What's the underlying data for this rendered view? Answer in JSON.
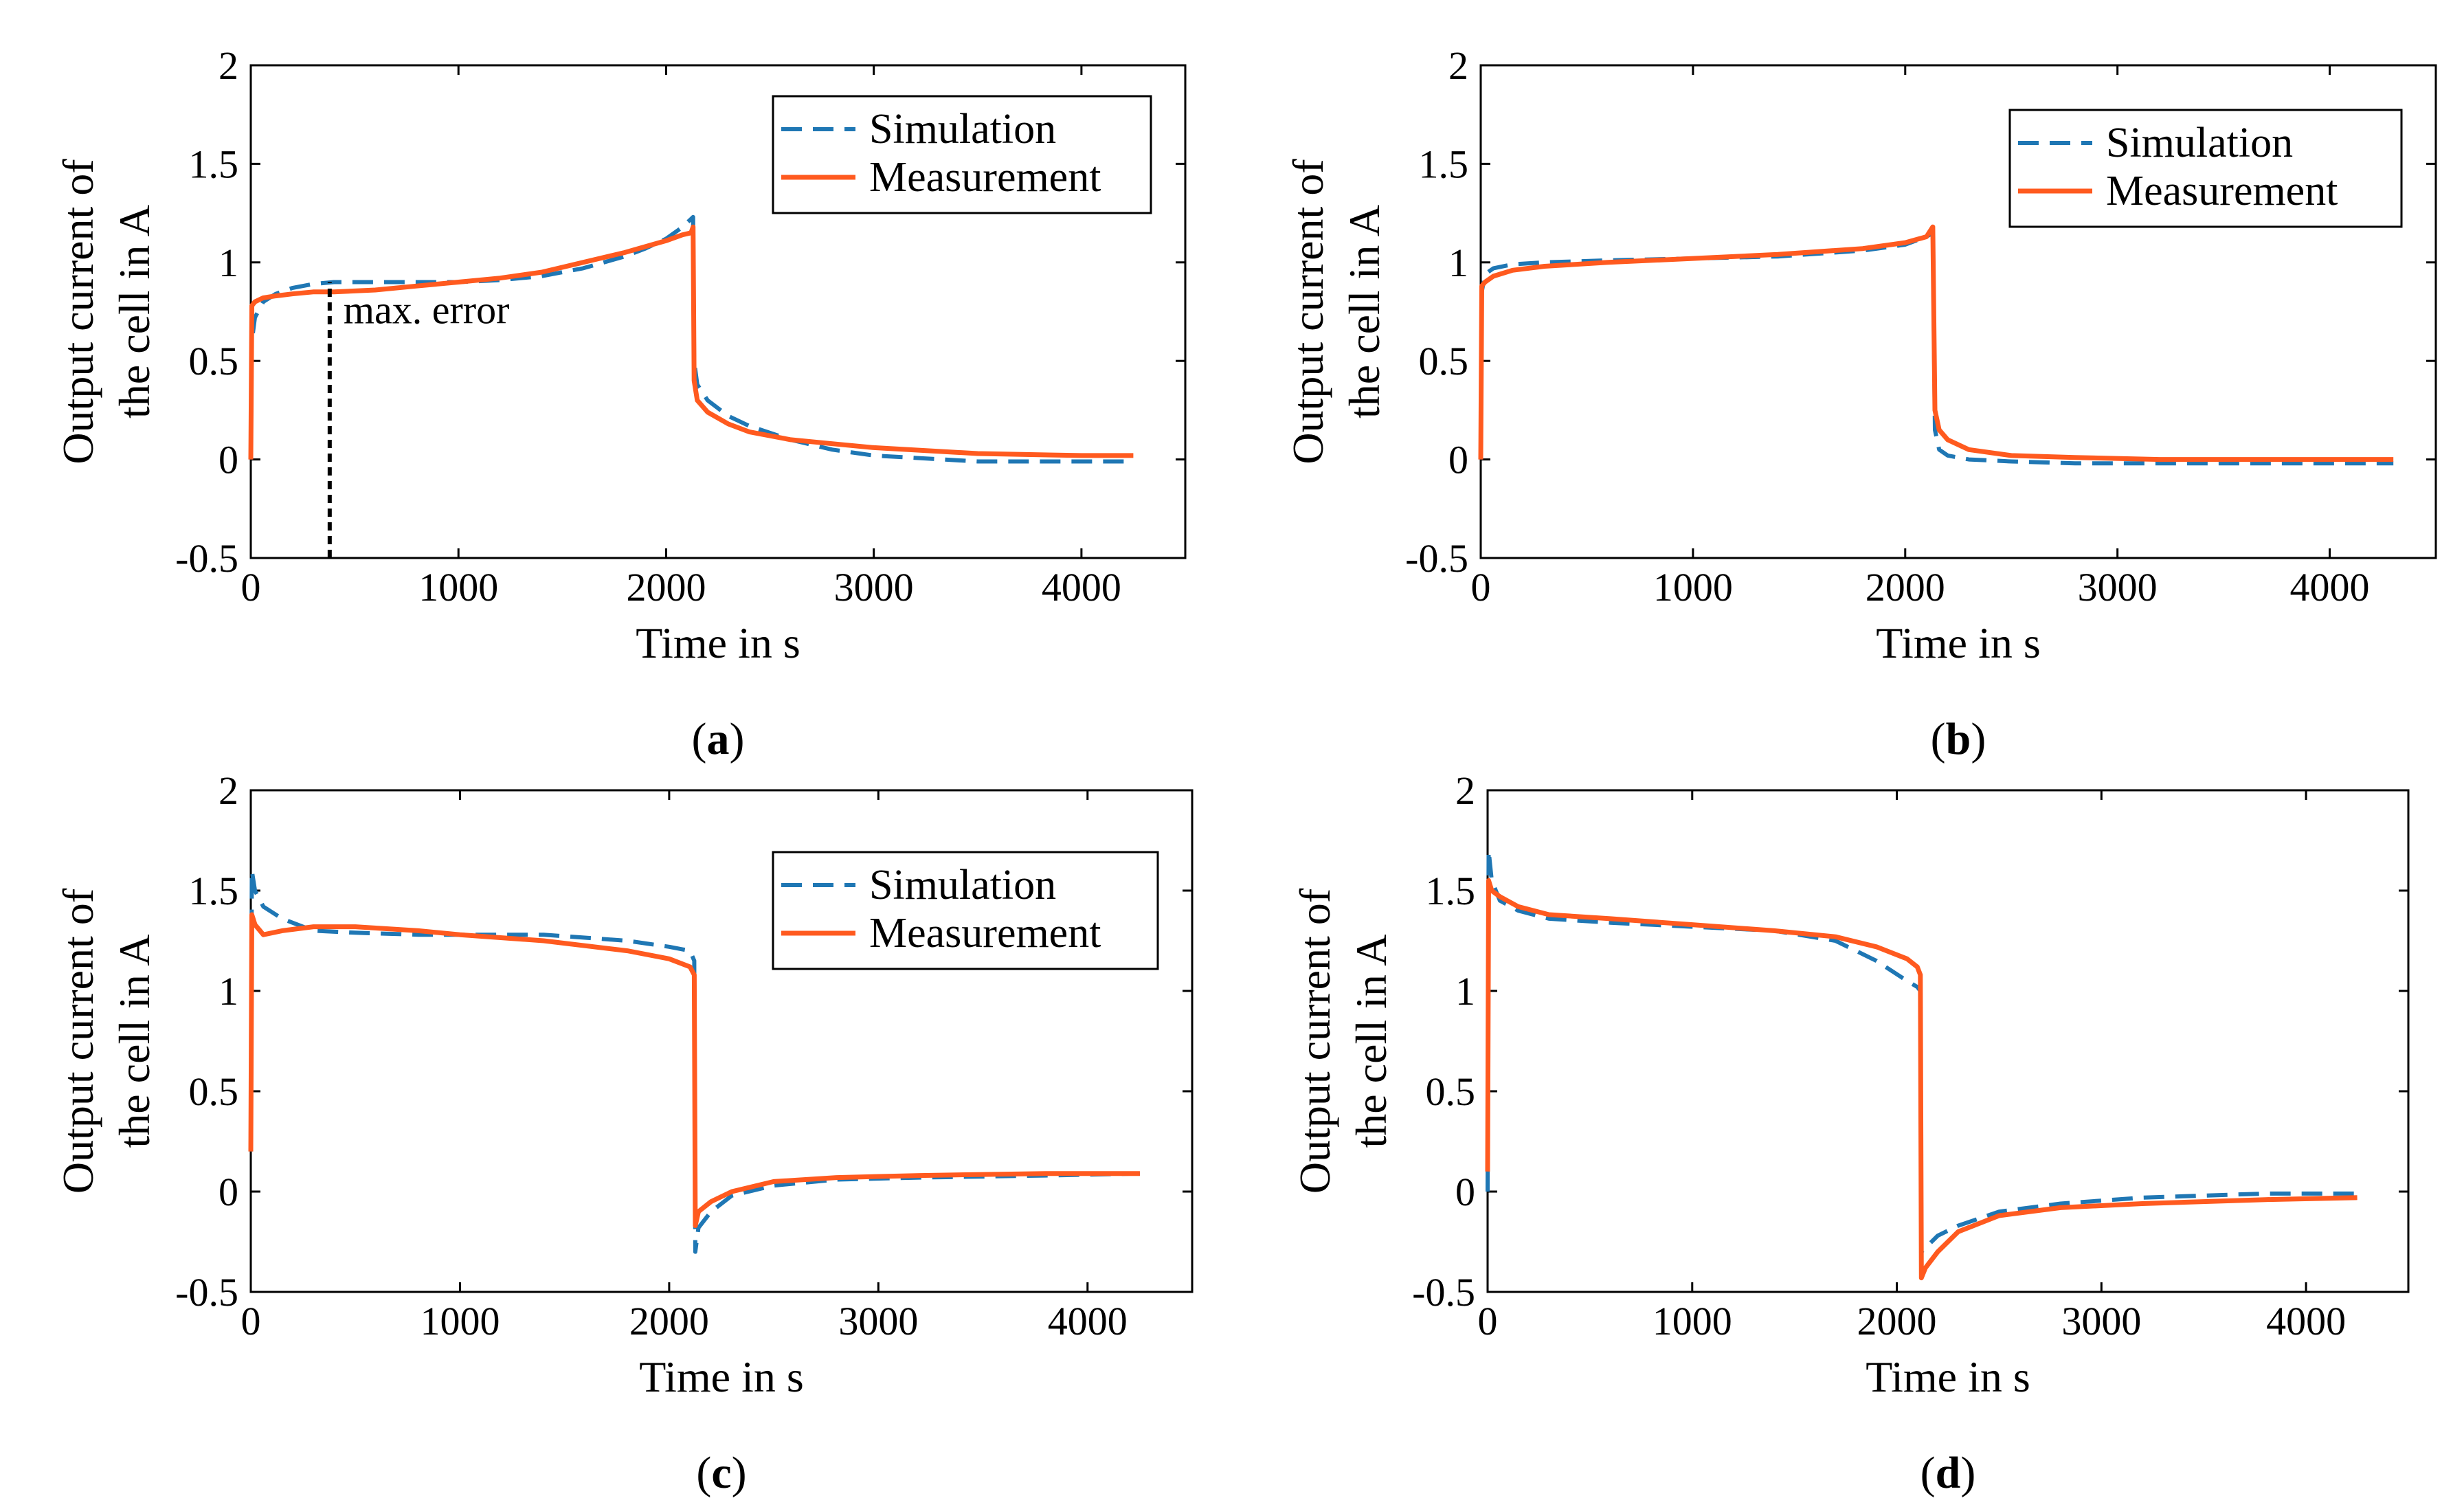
{
  "colors": {
    "simulation": "#1f77b4",
    "measurement": "#ff5a1f",
    "axis": "#000000",
    "annotation": "#000000"
  },
  "chart_data": [
    {
      "panel": "a",
      "caption": "(a)",
      "type": "line",
      "xlabel": "Time in s",
      "ylabel_lines": [
        "Output current of",
        "the cell in A"
      ],
      "xlim": [
        0,
        4500
      ],
      "ylim": [
        -0.5,
        2
      ],
      "xticks": [
        0,
        1000,
        2000,
        3000,
        4000
      ],
      "yticks": [
        -0.5,
        0,
        0.5,
        1,
        1.5,
        2
      ],
      "ytick_labels": [
        "-0.5",
        "0",
        "0.5",
        "1",
        "1.5",
        "2"
      ],
      "grid": false,
      "legend": {
        "placement": "top-right",
        "entries": [
          "Simulation",
          "Measurement"
        ]
      },
      "annotations": [
        {
          "text": "max. error",
          "x": 380,
          "y_from": -0.5,
          "y_to": 0.9
        }
      ],
      "series": [
        {
          "name": "Simulation",
          "style": "dashed",
          "x": [
            0,
            5,
            20,
            60,
            120,
            200,
            300,
            400,
            600,
            800,
            1000,
            1200,
            1400,
            1600,
            1800,
            1900,
            2000,
            2080,
            2120,
            2130,
            2135,
            2150,
            2200,
            2300,
            2400,
            2600,
            2800,
            3000,
            3500,
            4000,
            4250
          ],
          "y": [
            0,
            0.6,
            0.72,
            0.8,
            0.84,
            0.87,
            0.89,
            0.9,
            0.9,
            0.9,
            0.9,
            0.91,
            0.93,
            0.97,
            1.03,
            1.07,
            1.12,
            1.18,
            1.22,
            1.23,
            0.5,
            0.38,
            0.3,
            0.22,
            0.17,
            0.1,
            0.05,
            0.02,
            -0.01,
            -0.01,
            -0.01
          ]
        },
        {
          "name": "Measurement",
          "style": "solid",
          "x": [
            0,
            5,
            20,
            60,
            120,
            200,
            300,
            400,
            600,
            800,
            1000,
            1200,
            1400,
            1600,
            1800,
            1900,
            2000,
            2080,
            2120,
            2130,
            2135,
            2150,
            2200,
            2300,
            2400,
            2600,
            2800,
            3000,
            3500,
            4000,
            4250
          ],
          "y": [
            0,
            0.78,
            0.8,
            0.82,
            0.83,
            0.84,
            0.85,
            0.85,
            0.86,
            0.88,
            0.9,
            0.92,
            0.95,
            1.0,
            1.05,
            1.08,
            1.11,
            1.14,
            1.15,
            1.18,
            0.4,
            0.3,
            0.24,
            0.18,
            0.14,
            0.1,
            0.08,
            0.06,
            0.03,
            0.02,
            0.02
          ]
        }
      ]
    },
    {
      "panel": "b",
      "caption": "(b)",
      "type": "line",
      "xlabel": "Time in s",
      "ylabel_lines": [
        "Output current of",
        "the cell in A"
      ],
      "xlim": [
        0,
        4500
      ],
      "ylim": [
        -0.5,
        2
      ],
      "xticks": [
        0,
        1000,
        2000,
        3000,
        4000
      ],
      "yticks": [
        -0.5,
        0,
        0.5,
        1,
        1.5,
        2
      ],
      "ytick_labels": [
        "-0.5",
        "0",
        "0.5",
        "1",
        "1.5",
        "2"
      ],
      "grid": false,
      "legend": {
        "placement": "top-right",
        "entries": [
          "Simulation",
          "Measurement"
        ]
      },
      "annotations": [],
      "series": [
        {
          "name": "Simulation",
          "style": "dashed",
          "x": [
            0,
            5,
            20,
            60,
            150,
            300,
            600,
            1000,
            1400,
            1800,
            2000,
            2100,
            2130,
            2140,
            2160,
            2200,
            2300,
            2500,
            2800,
            3200,
            3800,
            4300
          ],
          "y": [
            0,
            0.85,
            0.94,
            0.97,
            0.99,
            1.0,
            1.01,
            1.02,
            1.03,
            1.06,
            1.09,
            1.13,
            1.15,
            0.15,
            0.05,
            0.02,
            0.0,
            -0.01,
            -0.02,
            -0.02,
            -0.02,
            -0.02
          ]
        },
        {
          "name": "Measurement",
          "style": "solid",
          "x": [
            0,
            5,
            20,
            60,
            150,
            300,
            600,
            1000,
            1400,
            1800,
            2000,
            2100,
            2130,
            2140,
            2160,
            2200,
            2300,
            2500,
            2800,
            3200,
            3800,
            4300
          ],
          "y": [
            0,
            0.88,
            0.9,
            0.93,
            0.96,
            0.98,
            1.0,
            1.02,
            1.04,
            1.07,
            1.1,
            1.13,
            1.18,
            0.25,
            0.15,
            0.1,
            0.05,
            0.02,
            0.01,
            0.0,
            0.0,
            0.0
          ]
        }
      ]
    },
    {
      "panel": "c",
      "caption": "(c)",
      "type": "line",
      "xlabel": "Time in s",
      "ylabel_lines": [
        "Output current of",
        "the cell in A"
      ],
      "xlim": [
        0,
        4500
      ],
      "ylim": [
        -0.5,
        2
      ],
      "xticks": [
        0,
        1000,
        2000,
        3000,
        4000
      ],
      "yticks": [
        -0.5,
        0,
        0.5,
        1,
        1.5,
        2
      ],
      "ytick_labels": [
        "-0.5",
        "0",
        "0.5",
        "1",
        "1.5",
        "2"
      ],
      "grid": false,
      "legend": {
        "placement": "top-right",
        "entries": [
          "Simulation",
          "Measurement"
        ]
      },
      "annotations": [],
      "series": [
        {
          "name": "Simulation",
          "style": "dashed",
          "x": [
            0,
            5,
            20,
            60,
            150,
            300,
            500,
            800,
            1000,
            1400,
            1800,
            2000,
            2100,
            2120,
            2125,
            2140,
            2200,
            2300,
            2500,
            2800,
            3200,
            3800,
            4250
          ],
          "y": [
            0.2,
            1.6,
            1.5,
            1.42,
            1.36,
            1.3,
            1.29,
            1.28,
            1.28,
            1.28,
            1.25,
            1.22,
            1.2,
            1.15,
            -0.3,
            -0.18,
            -0.1,
            -0.02,
            0.03,
            0.06,
            0.07,
            0.08,
            0.09
          ]
        },
        {
          "name": "Measurement",
          "style": "solid",
          "x": [
            0,
            5,
            20,
            60,
            150,
            300,
            500,
            800,
            1000,
            1400,
            1800,
            2000,
            2100,
            2120,
            2125,
            2140,
            2200,
            2300,
            2500,
            2800,
            3200,
            3800,
            4250
          ],
          "y": [
            0.2,
            1.38,
            1.33,
            1.28,
            1.3,
            1.32,
            1.32,
            1.3,
            1.28,
            1.25,
            1.2,
            1.16,
            1.12,
            1.08,
            -0.17,
            -0.1,
            -0.05,
            0.0,
            0.05,
            0.07,
            0.08,
            0.09,
            0.09
          ]
        }
      ]
    },
    {
      "panel": "d",
      "caption": "(d)",
      "type": "line",
      "xlabel": "Time in s",
      "ylabel_lines": [
        "Output current of",
        "the cell in A"
      ],
      "xlim": [
        0,
        4500
      ],
      "ylim": [
        -0.5,
        2
      ],
      "xticks": [
        0,
        1000,
        2000,
        3000,
        4000
      ],
      "yticks": [
        -0.5,
        0,
        0.5,
        1,
        1.5,
        2
      ],
      "ytick_labels": [
        "-0.5",
        "0",
        "0.5",
        "1",
        "1.5",
        "2"
      ],
      "grid": false,
      "legend": null,
      "annotations": [],
      "series": [
        {
          "name": "Simulation",
          "style": "dashed",
          "x": [
            0,
            5,
            20,
            60,
            150,
            300,
            600,
            1000,
            1400,
            1700,
            1900,
            2050,
            2100,
            2115,
            2120,
            2140,
            2200,
            2300,
            2500,
            2800,
            3200,
            3800,
            4250
          ],
          "y": [
            0.0,
            1.7,
            1.55,
            1.45,
            1.4,
            1.36,
            1.34,
            1.32,
            1.3,
            1.25,
            1.15,
            1.05,
            1.02,
            1.0,
            -0.3,
            -0.28,
            -0.22,
            -0.17,
            -0.1,
            -0.06,
            -0.03,
            -0.01,
            -0.01
          ]
        },
        {
          "name": "Measurement",
          "style": "solid",
          "x": [
            0,
            5,
            20,
            60,
            150,
            300,
            600,
            1000,
            1400,
            1700,
            1900,
            2050,
            2100,
            2115,
            2120,
            2140,
            2200,
            2300,
            2500,
            2800,
            3200,
            3800,
            4250
          ],
          "y": [
            0.1,
            1.55,
            1.5,
            1.47,
            1.42,
            1.38,
            1.36,
            1.33,
            1.3,
            1.27,
            1.22,
            1.16,
            1.12,
            1.08,
            -0.43,
            -0.38,
            -0.3,
            -0.2,
            -0.12,
            -0.08,
            -0.06,
            -0.04,
            -0.03
          ]
        }
      ]
    }
  ]
}
